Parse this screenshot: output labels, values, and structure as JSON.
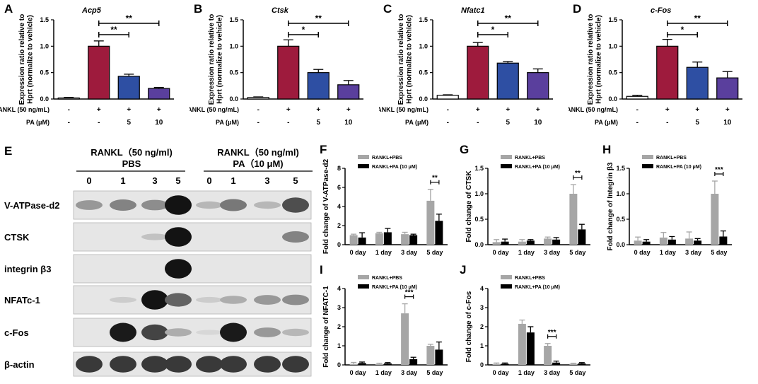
{
  "colors": {
    "vehicle": "#ffffff",
    "rankl": "#9e1b3d",
    "pa5": "#2e4fa3",
    "pa10": "#5a3f9d",
    "pbs": "#a6a6a6",
    "pa": "#000000"
  },
  "top_panels": [
    {
      "label": "A",
      "gene": "Acp5"
    },
    {
      "label": "B",
      "gene": "Ctsk"
    },
    {
      "label": "C",
      "gene": "Nfatc1"
    },
    {
      "label": "D",
      "gene": "c-Fos"
    }
  ],
  "top_ylabel_1": "Expression ratio relative to",
  "top_ylabel_2": "Hprt (normalize to vehicle)",
  "row_rankl": "RANKL (50 ng/mL)",
  "row_pa": "PA (μM)",
  "rankl_signs": [
    "-",
    "+",
    "+",
    "+"
  ],
  "pa_signs": [
    "-",
    "-",
    "5",
    "10"
  ],
  "sig": {
    "one": "*",
    "two": "**",
    "three": "***"
  },
  "blot": {
    "label": "E",
    "group1_line1": "RANKL（50 ng/ml)",
    "group1_line2": "PBS",
    "group2_line1": "RANKL（50 ng/ml)",
    "group2_line2": "PA（10 μM)",
    "days": [
      "0",
      "1",
      "3",
      "5",
      "0",
      "1",
      "3",
      "5"
    ],
    "rows": [
      "V-ATPase-d2",
      "CTSK",
      "integrin β3",
      "NFATc-1",
      "c-Fos",
      "β-actin"
    ],
    "band_intensity": [
      [
        0.35,
        0.45,
        0.4,
        0.98,
        0.2,
        0.5,
        0.2,
        0.7
      ],
      [
        0.0,
        0.0,
        0.15,
        0.98,
        0.0,
        0.0,
        0.0,
        0.45
      ],
      [
        0.0,
        0.0,
        0.0,
        0.98,
        0.0,
        0.0,
        0.0,
        0.0
      ],
      [
        0.0,
        0.1,
        0.98,
        0.6,
        0.1,
        0.25,
        0.35,
        0.4
      ],
      [
        0.0,
        0.95,
        0.75,
        0.25,
        0.05,
        0.95,
        0.35,
        0.2
      ],
      [
        0.8,
        0.8,
        0.8,
        0.8,
        0.8,
        0.8,
        0.8,
        0.8
      ]
    ]
  },
  "bar_legend": {
    "pbs": "RANKL+PBS",
    "pa": "RANKL+PA (10 μM)"
  },
  "chart_data": [
    {
      "panel": "A",
      "type": "bar",
      "title": "Acp5",
      "ylabel": "Expression ratio relative to Hprt (normalize to vehicle)",
      "ylim": [
        0,
        1.5
      ],
      "yticks": [
        0.0,
        0.5,
        1.0,
        1.5
      ],
      "categories": [
        "vehicle",
        "RANKL",
        "RANKL+PA 5",
        "RANKL+PA 10"
      ],
      "values": [
        0.02,
        1.0,
        0.43,
        0.2
      ],
      "errors": [
        0.01,
        0.1,
        0.04,
        0.02
      ],
      "brackets": [
        {
          "from": 1,
          "to": 2,
          "label": "**"
        },
        {
          "from": 1,
          "to": 3,
          "label": "**"
        }
      ]
    },
    {
      "panel": "B",
      "type": "bar",
      "title": "Ctsk",
      "ylabel": "Expression ratio relative to Hprt (normalize to vehicle)",
      "ylim": [
        0,
        1.5
      ],
      "yticks": [
        0.0,
        0.5,
        1.0,
        1.5
      ],
      "categories": [
        "vehicle",
        "RANKL",
        "RANKL+PA 5",
        "RANKL+PA 10"
      ],
      "values": [
        0.03,
        1.0,
        0.5,
        0.27
      ],
      "errors": [
        0.01,
        0.12,
        0.06,
        0.08
      ],
      "brackets": [
        {
          "from": 1,
          "to": 2,
          "label": "*"
        },
        {
          "from": 1,
          "to": 3,
          "label": "**"
        }
      ]
    },
    {
      "panel": "C",
      "type": "bar",
      "title": "Nfatc1",
      "ylabel": "Expression ratio relative to Hprt (normalize to vehicle)",
      "ylim": [
        0,
        1.5
      ],
      "yticks": [
        0.0,
        0.5,
        1.0,
        1.5
      ],
      "categories": [
        "vehicle",
        "RANKL",
        "RANKL+PA 5",
        "RANKL+PA 10"
      ],
      "values": [
        0.07,
        1.0,
        0.68,
        0.5
      ],
      "errors": [
        0.01,
        0.07,
        0.03,
        0.07
      ],
      "brackets": [
        {
          "from": 1,
          "to": 2,
          "label": "*"
        },
        {
          "from": 1,
          "to": 3,
          "label": "**"
        }
      ]
    },
    {
      "panel": "D",
      "type": "bar",
      "title": "c-Fos",
      "ylabel": "Expression ratio relative to Hprt (normalize to vehicle)",
      "ylim": [
        0,
        1.5
      ],
      "yticks": [
        0.0,
        0.5,
        1.0,
        1.5
      ],
      "categories": [
        "vehicle",
        "RANKL",
        "RANKL+PA 5",
        "RANKL+PA 10"
      ],
      "values": [
        0.05,
        1.0,
        0.6,
        0.4
      ],
      "errors": [
        0.02,
        0.13,
        0.1,
        0.12
      ],
      "brackets": [
        {
          "from": 1,
          "to": 2,
          "label": "*"
        },
        {
          "from": 1,
          "to": 3,
          "label": "**"
        }
      ]
    },
    {
      "panel": "F",
      "type": "bar",
      "ylabel": "Fold change of V-ATPase-d2",
      "ylim": [
        0,
        8
      ],
      "yticks": [
        0,
        2,
        4,
        6,
        8
      ],
      "categories": [
        "0 day",
        "1 day",
        "3 day",
        "5 day"
      ],
      "series": [
        {
          "name": "RANKL+PBS",
          "values": [
            1.0,
            1.2,
            1.1,
            4.6
          ],
          "errors": [
            0.1,
            0.1,
            0.2,
            1.2
          ]
        },
        {
          "name": "RANKL+PA (10 μM)",
          "values": [
            0.75,
            1.3,
            1.0,
            2.5
          ],
          "errors": [
            0.5,
            0.4,
            0.1,
            0.7
          ]
        }
      ],
      "brackets": [
        {
          "category": 3,
          "label": "**"
        }
      ]
    },
    {
      "panel": "G",
      "type": "bar",
      "ylabel": "Fold change of CTSK",
      "ylim": [
        0,
        1.5
      ],
      "yticks": [
        0.0,
        0.5,
        1.0,
        1.5
      ],
      "categories": [
        "0 day",
        "1 day",
        "3 day",
        "5 day"
      ],
      "series": [
        {
          "name": "RANKL+PBS",
          "values": [
            0.05,
            0.06,
            0.12,
            1.0
          ],
          "errors": [
            0.05,
            0.04,
            0.03,
            0.18
          ]
        },
        {
          "name": "RANKL+PA (10 μM)",
          "values": [
            0.06,
            0.08,
            0.1,
            0.3
          ],
          "errors": [
            0.05,
            0.02,
            0.04,
            0.1
          ]
        }
      ],
      "brackets": [
        {
          "category": 3,
          "label": "**"
        }
      ]
    },
    {
      "panel": "H",
      "type": "bar",
      "ylabel": "Fold change of Integrin β3",
      "ylim": [
        0,
        1.5
      ],
      "yticks": [
        0.0,
        0.5,
        1.0,
        1.5
      ],
      "categories": [
        "0 day",
        "1 day",
        "3 day",
        "5 day"
      ],
      "series": [
        {
          "name": "RANKL+PBS",
          "values": [
            0.08,
            0.14,
            0.12,
            1.0
          ],
          "errors": [
            0.07,
            0.1,
            0.13,
            0.25
          ]
        },
        {
          "name": "RANKL+PA (10 μM)",
          "values": [
            0.06,
            0.1,
            0.08,
            0.16
          ],
          "errors": [
            0.04,
            0.06,
            0.04,
            0.11
          ]
        }
      ],
      "brackets": [
        {
          "category": 3,
          "label": "***"
        }
      ]
    },
    {
      "panel": "I",
      "type": "bar",
      "ylabel": "Fold change of NFATC-1",
      "ylim": [
        0,
        4
      ],
      "yticks": [
        0,
        1,
        2,
        3,
        4
      ],
      "categories": [
        "0 day",
        "1 day",
        "3 day",
        "5 day"
      ],
      "series": [
        {
          "name": "RANKL+PBS",
          "values": [
            0.05,
            0.05,
            2.7,
            1.0
          ],
          "errors": [
            0.08,
            0.04,
            0.5,
            0.08
          ]
        },
        {
          "name": "RANKL+PA (10 μM)",
          "values": [
            0.1,
            0.08,
            0.3,
            0.8
          ],
          "errors": [
            0.05,
            0.04,
            0.1,
            0.4
          ]
        }
      ],
      "brackets": [
        {
          "category": 2,
          "label": "***"
        }
      ]
    },
    {
      "panel": "J",
      "type": "bar",
      "ylabel": "Fold change of c-Fos",
      "ylim": [
        0,
        4
      ],
      "yticks": [
        0,
        1,
        2,
        3,
        4
      ],
      "categories": [
        "0 day",
        "1 day",
        "3 day",
        "5 day"
      ],
      "series": [
        {
          "name": "RANKL+PBS",
          "values": [
            0.05,
            2.15,
            1.0,
            0.06
          ],
          "errors": [
            0.05,
            0.2,
            0.12,
            0.03
          ]
        },
        {
          "name": "RANKL+PA (10 μM)",
          "values": [
            0.06,
            1.7,
            0.12,
            0.08
          ],
          "errors": [
            0.04,
            0.3,
            0.08,
            0.04
          ]
        }
      ],
      "brackets": [
        {
          "category": 2,
          "label": "***"
        }
      ]
    }
  ]
}
